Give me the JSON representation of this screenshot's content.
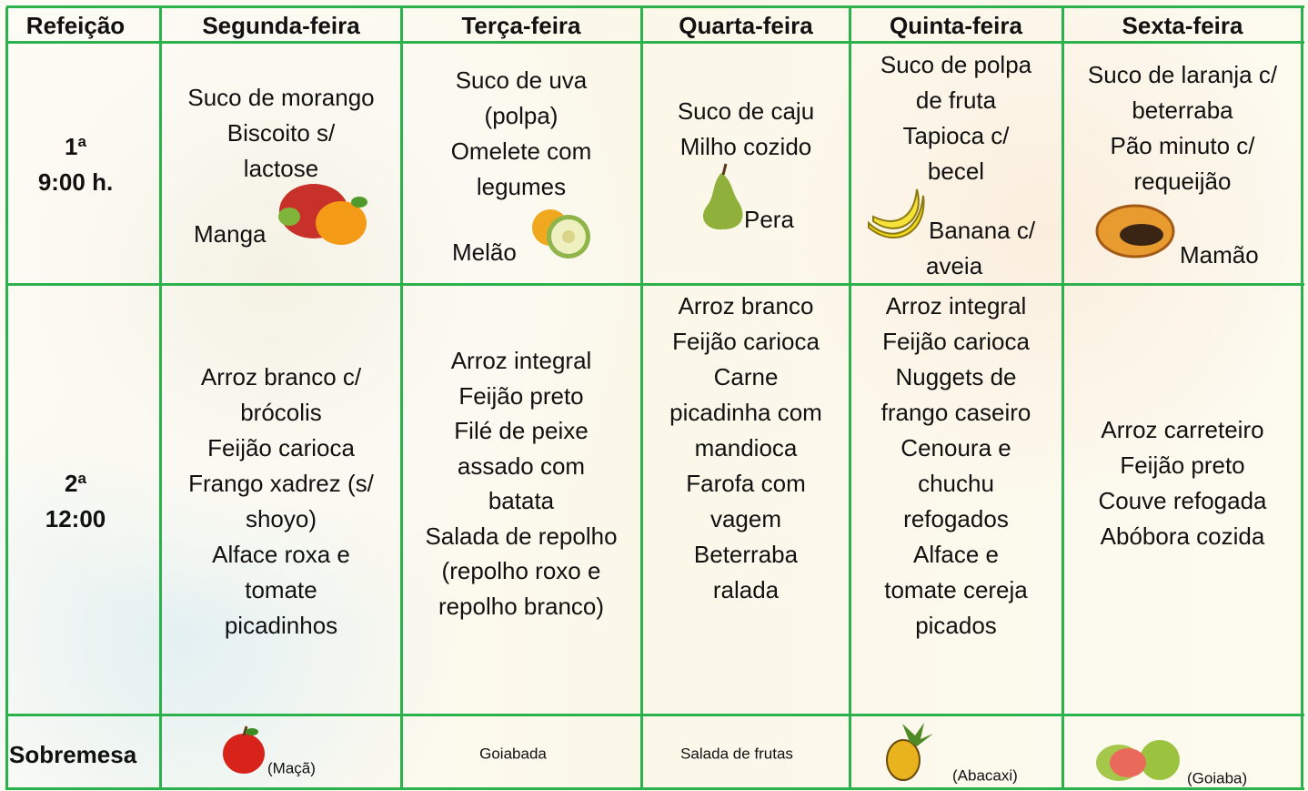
{
  "table": {
    "header": [
      "Refeição",
      "Segunda-feira",
      "Terça-feira",
      "Quarta-feira",
      "Quinta-feira",
      "Sexta-feira"
    ],
    "rows": [
      {
        "meal": [
          "1ª",
          "9:00 h."
        ],
        "cells": [
          {
            "lines": [
              "Suco de morango",
              "Biscoito s/",
              "lactose"
            ],
            "fruit": [
              "Manga"
            ]
          },
          {
            "lines": [
              "Suco de uva",
              "(polpa)",
              "Omelete com",
              "legumes"
            ],
            "fruit": [
              "Melão"
            ]
          },
          {
            "lines": [
              "Suco de caju",
              "Milho cozido"
            ],
            "fruit": [
              "Pera"
            ]
          },
          {
            "lines": [
              "Suco de polpa",
              "de fruta",
              "Tapioca c/",
              "becel"
            ],
            "fruit": [
              "Banana c/",
              "aveia"
            ]
          },
          {
            "lines": [
              "Suco de laranja c/",
              "beterraba",
              "Pão minuto c/",
              "requeijão"
            ],
            "fruit": [
              "Mamão"
            ]
          }
        ]
      },
      {
        "meal": [
          "2ª",
          "12:00"
        ],
        "cells": [
          {
            "lines": [
              "Arroz branco c/",
              "brócolis",
              "Feijão carioca",
              "Frango xadrez (s/",
              "shoyo)",
              "Alface roxa e",
              "tomate",
              "picadinhos"
            ]
          },
          {
            "lines": [
              "Arroz integral",
              "Feijão preto",
              "Filé de peixe",
              "assado com",
              "batata",
              "Salada de repolho",
              "(repolho roxo e",
              "repolho branco)"
            ]
          },
          {
            "lines": [
              "Arroz branco",
              "Feijão carioca",
              "Carne",
              "picadinha com",
              "mandioca",
              "Farofa com",
              "vagem",
              "Beterraba",
              "ralada"
            ]
          },
          {
            "lines": [
              "Arroz integral",
              "Feijão carioca",
              "Nuggets de",
              "frango caseiro",
              "Cenoura e",
              "chuchu",
              "refogados",
              "Alface e",
              "tomate cereja",
              "picados"
            ]
          },
          {
            "lines": [
              "Arroz carreteiro",
              "Feijão preto",
              "Couve refogada",
              "Abóbora cozida"
            ]
          }
        ]
      },
      {
        "meal": [
          "Sobremesa"
        ],
        "cells": [
          {
            "lines": [
              "(Maçã)"
            ]
          },
          {
            "lines": [
              "Goiabada"
            ]
          },
          {
            "lines": [
              "Salada de frutas"
            ]
          },
          {
            "lines": [
              "(Abacaxi)"
            ]
          },
          {
            "lines": [
              "(Goiaba)"
            ]
          }
        ]
      }
    ]
  }
}
